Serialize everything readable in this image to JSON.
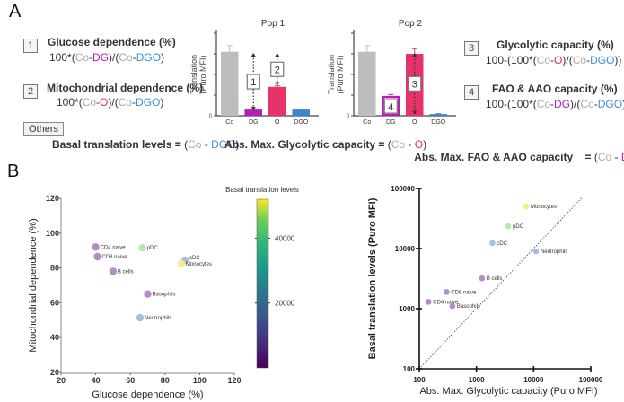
{
  "panel_a": {
    "letter": "A",
    "formulas": [
      {
        "num": "1",
        "title": "Glucose dependence (%)",
        "expr": [
          [
            "100*(",
            ""
          ],
          [
            "Co",
            "gray"
          ],
          [
            "-",
            ""
          ],
          [
            "DG",
            "mag"
          ],
          [
            ")/(",
            ""
          ],
          [
            "Co",
            "gray"
          ],
          [
            "-",
            ""
          ],
          [
            "DGO",
            "blue"
          ],
          [
            ")",
            ""
          ]
        ]
      },
      {
        "num": "2",
        "title": "Mitochondrial dependence (%)",
        "expr": [
          [
            "100*(",
            ""
          ],
          [
            "Co",
            "gray"
          ],
          [
            "-",
            ""
          ],
          [
            "O",
            "red"
          ],
          [
            ")/(",
            ""
          ],
          [
            "Co",
            "gray"
          ],
          [
            "-",
            ""
          ],
          [
            "DGO",
            "blue"
          ],
          [
            ")",
            ""
          ]
        ]
      },
      {
        "num": "3",
        "title": "Glycolytic capacity (%)",
        "expr": [
          [
            "100-(100*(",
            ""
          ],
          [
            "Co",
            "gray"
          ],
          [
            "-",
            ""
          ],
          [
            "O",
            "red"
          ],
          [
            ")/(",
            ""
          ],
          [
            "Co",
            "gray"
          ],
          [
            "-",
            ""
          ],
          [
            "DGO",
            "blue"
          ],
          [
            "))",
            ""
          ]
        ]
      },
      {
        "num": "4",
        "title": "FAO & AAO capacity (%)",
        "expr": [
          [
            "100-(100*(",
            ""
          ],
          [
            "Co",
            "gray"
          ],
          [
            "-",
            ""
          ],
          [
            "DG",
            "mag"
          ],
          [
            ")/(",
            ""
          ],
          [
            "Co",
            "gray"
          ],
          [
            "-",
            ""
          ],
          [
            "DGO",
            "blue"
          ],
          [
            "))",
            ""
          ]
        ]
      }
    ],
    "others_label": "Others",
    "others": [
      {
        "label": "Basal translation levels = ",
        "expr": [
          [
            "(",
            ""
          ],
          [
            "Co",
            "gray"
          ],
          [
            " - ",
            ""
          ],
          [
            "DGO",
            "blue"
          ],
          [
            ")",
            ""
          ]
        ]
      },
      {
        "label": "Abs. Max. Glycolytic capacity = ",
        "expr": [
          [
            "(",
            ""
          ],
          [
            "Co",
            "gray"
          ],
          [
            " - ",
            ""
          ],
          [
            "O",
            "red"
          ],
          [
            ")",
            ""
          ]
        ]
      },
      {
        "label": "Abs. Max. FAO & AAO capacity    = ",
        "expr": [
          [
            "(",
            ""
          ],
          [
            "Co",
            "gray"
          ],
          [
            " - ",
            ""
          ],
          [
            "DG",
            "mag"
          ],
          [
            ")",
            ""
          ]
        ]
      }
    ]
  },
  "panel_b": {
    "letter": "B"
  },
  "colors": {
    "gray": "#bdbdbd",
    "mag": "#b51db5",
    "red": "#e8336a",
    "blue": "#3a85cc",
    "purple_pt": "#b58cc8",
    "blue_pt": "#a9bde0",
    "green_pt": "#b9e6b3",
    "yellow_pt": "#fbeb86"
  },
  "chart_data": [
    {
      "type": "bar",
      "title": "Pop 1",
      "ylabel": "Translation (Puro MFI)",
      "categories": [
        "Co",
        "DG",
        "O",
        "DGO"
      ],
      "values": [
        3.1,
        0.3,
        1.4,
        0.3
      ],
      "errors": [
        0.3,
        0.03,
        0.05,
        0.03
      ],
      "ylim": [
        0,
        4
      ],
      "yticks": [
        0,
        1,
        2,
        3,
        4
      ],
      "ytick_labels": [
        "0",
        "",
        "",
        "",
        ""
      ],
      "annotations": [
        {
          "label": "1",
          "category": "DG",
          "from": 0.3,
          "to": 3.0
        },
        {
          "label": "2",
          "category": "O",
          "from": 1.5,
          "to": 3.0
        }
      ]
    },
    {
      "type": "bar",
      "title": "Pop 2",
      "ylabel": "Translation (Puro MFI)",
      "categories": [
        "Co",
        "DG",
        "O",
        "DGO"
      ],
      "values": [
        3.1,
        0.95,
        3.0,
        0.08
      ],
      "errors": [
        0.3,
        0.08,
        0.25,
        0.02
      ],
      "ylim": [
        0,
        4
      ],
      "yticks": [
        0,
        1,
        2,
        3,
        4
      ],
      "ytick_labels": [
        "0",
        "",
        "",
        "",
        ""
      ],
      "annotations": [
        {
          "label": "3",
          "category": "O",
          "from": 0.1,
          "to": 3.0
        },
        {
          "label": "4",
          "category": "DG",
          "inside": true
        }
      ]
    },
    {
      "type": "scatter",
      "xlabel": "Glucose dependence (%)",
      "ylabel": "Mitochondrial dependence (%)",
      "xlim": [
        20,
        120
      ],
      "ylim": [
        20,
        120
      ],
      "xticks": [
        20,
        40,
        60,
        80,
        100,
        120
      ],
      "yticks": [
        20,
        40,
        60,
        80,
        100,
        120
      ],
      "colorbar": {
        "title": "Basal translation levels",
        "range": [
          0,
          52000
        ],
        "ticks": [
          20000,
          40000
        ]
      },
      "points": [
        {
          "label": "CD4 naive",
          "x": 40,
          "y": 92,
          "c": 1300,
          "color": "#b58cc8"
        },
        {
          "label": "CD8 naive",
          "x": 41,
          "y": 86.5,
          "c": 1900,
          "color": "#b58cc8"
        },
        {
          "label": "pDC",
          "x": 67,
          "y": 91.6,
          "c": 23500,
          "color": "#b9e6b3"
        },
        {
          "label": "B cells",
          "x": 50,
          "y": 78,
          "c": 3200,
          "color": "#b58cc8"
        },
        {
          "label": "cDC",
          "x": 91.5,
          "y": 84.4,
          "c": 12300,
          "color": "#a9bde0"
        },
        {
          "label": "Monocytes",
          "x": 89.4,
          "y": 82.4,
          "c": 50000,
          "color": "#fbeb86"
        },
        {
          "label": "Basophils",
          "x": 70,
          "y": 65,
          "c": 1100,
          "color": "#b58cc8"
        },
        {
          "label": "Neutrophils",
          "x": 65.6,
          "y": 51.4,
          "c": 9000,
          "color": "#a9bde0"
        }
      ]
    },
    {
      "type": "scatter",
      "scale": "log",
      "xlabel": "Abs. Max. Glycolytic capacity (Puro MFI)",
      "ylabel": "Basal translation levels (Puro MFI)",
      "xlim": [
        100,
        100000
      ],
      "ylim": [
        100,
        100000
      ],
      "xticks": [
        100,
        1000,
        10000,
        100000
      ],
      "yticks": [
        100,
        1000,
        10000,
        100000
      ],
      "identity_line": true,
      "points": [
        {
          "label": "Monocytes",
          "x": 7400,
          "y": 50000,
          "color": "#fbeb86"
        },
        {
          "label": "pDC",
          "x": 3600,
          "y": 23500,
          "color": "#b9e6b3"
        },
        {
          "label": "cDC",
          "x": 1900,
          "y": 12300,
          "color": "#a9bde0"
        },
        {
          "label": "Neutrophils",
          "x": 11000,
          "y": 9000,
          "color": "#a9bde0"
        },
        {
          "label": "B cells",
          "x": 1250,
          "y": 3200,
          "color": "#b58cc8"
        },
        {
          "label": "CD8 naive",
          "x": 300,
          "y": 1900,
          "color": "#b58cc8"
        },
        {
          "label": "CD4 naive",
          "x": 145,
          "y": 1300,
          "color": "#b58cc8"
        },
        {
          "label": "Basophils",
          "x": 380,
          "y": 1100,
          "color": "#b58cc8"
        }
      ]
    }
  ]
}
